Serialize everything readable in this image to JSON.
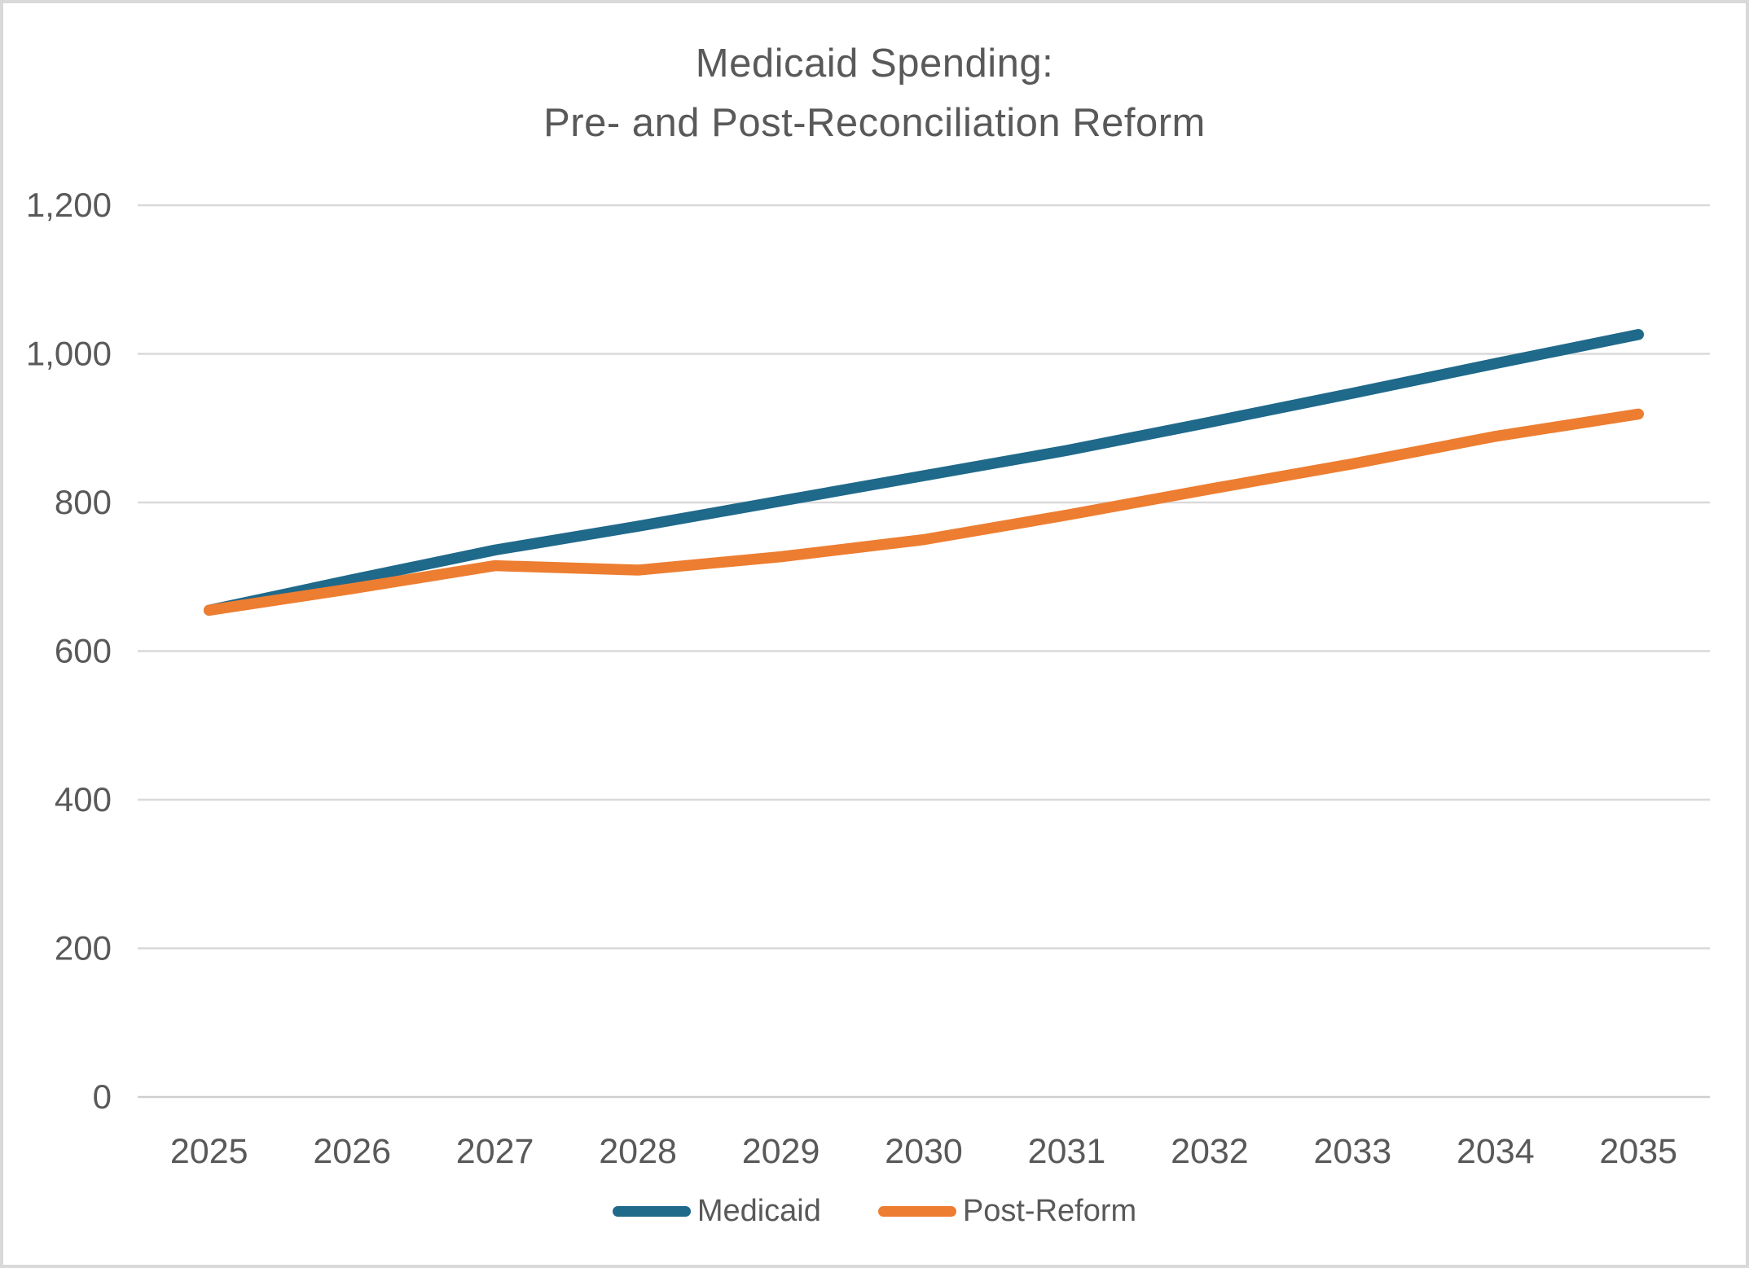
{
  "chart_data": {
    "type": "line",
    "title_lines": [
      "Medicaid Spending:",
      "Pre- and Post-Reconciliation Reform"
    ],
    "categories": [
      "2025",
      "2026",
      "2027",
      "2028",
      "2029",
      "2030",
      "2031",
      "2032",
      "2033",
      "2034",
      "2035"
    ],
    "series": [
      {
        "name": "Medicaid",
        "color": "#1F698A",
        "values": [
          655,
          696,
          736,
          768,
          802,
          836,
          870,
          908,
          947,
          987,
          1026
        ]
      },
      {
        "name": "Post-Reform",
        "color": "#ED7D31",
        "values": [
          655,
          684,
          715,
          709,
          727,
          750,
          783,
          818,
          852,
          889,
          919
        ]
      }
    ],
    "ylim": [
      0,
      1200
    ],
    "yticks": [
      {
        "value": 0,
        "label": "0"
      },
      {
        "value": 200,
        "label": "200"
      },
      {
        "value": 400,
        "label": "400"
      },
      {
        "value": 600,
        "label": "600"
      },
      {
        "value": 800,
        "label": "800"
      },
      {
        "value": 1000,
        "label": "1,000"
      },
      {
        "value": 1200,
        "label": "1,200"
      }
    ],
    "grid": "horizontal",
    "legend_position": "bottom"
  },
  "style": {
    "text_color": "#595959",
    "gridline_color": "#d9d9d9",
    "baseline_color": "#cfcfcf",
    "background": "#ffffff",
    "border_color": "#d9d9d9"
  }
}
